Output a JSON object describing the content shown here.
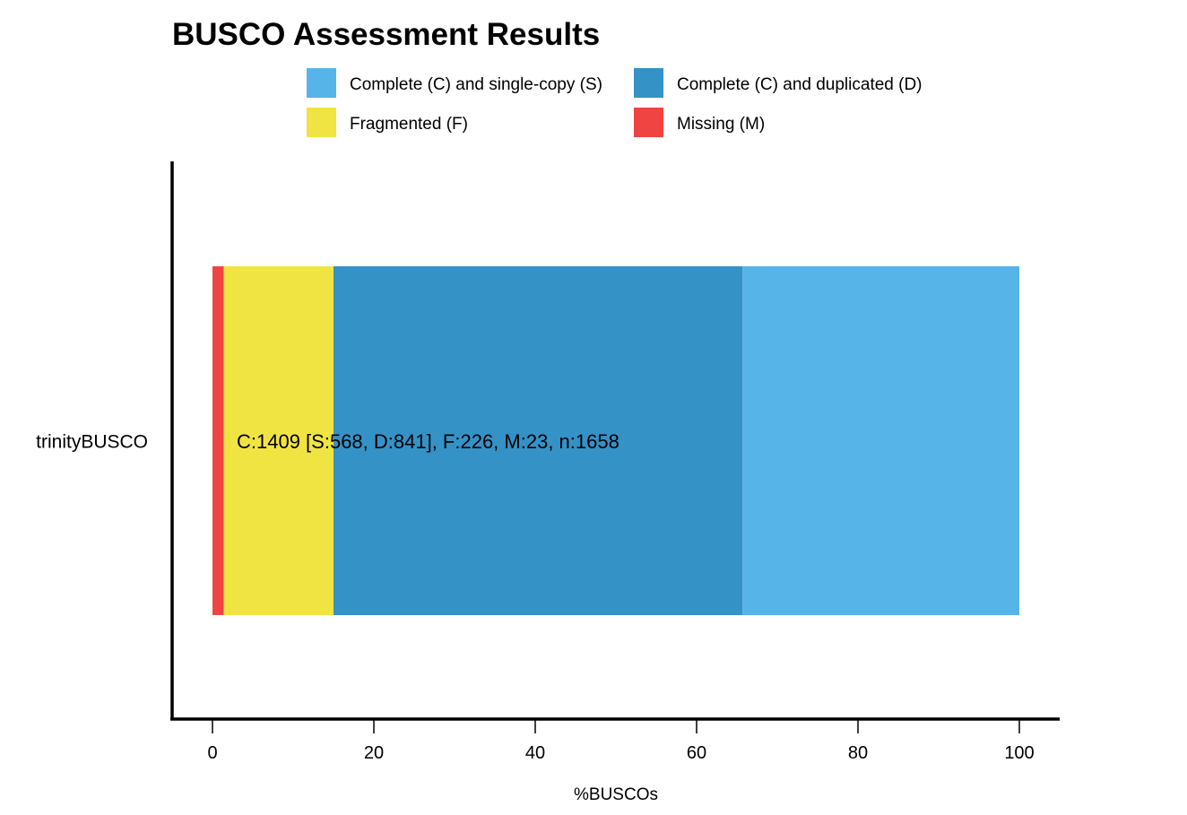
{
  "chart_data": {
    "type": "bar",
    "orientation": "horizontal",
    "stacked": true,
    "title": "BUSCO Assessment Results",
    "xlabel": "%BUSCOs",
    "ylabel": "",
    "xlim": [
      0,
      100
    ],
    "x_ticks": [
      "0",
      "20",
      "40",
      "60",
      "80",
      "100"
    ],
    "categories": [
      "trinityBUSCO"
    ],
    "legend_placement": "top",
    "grid": false,
    "legend": [
      {
        "key": "S",
        "label": "Complete (C) and single-copy (S)",
        "color": "#56B4E9"
      },
      {
        "key": "D",
        "label": "Complete (C) and duplicated (D)",
        "color": "#3492C7"
      },
      {
        "key": "F",
        "label": "Fragmented (F)",
        "color": "#F0E442"
      },
      {
        "key": "M",
        "label": "Missing (M)",
        "color": "#F04442"
      }
    ],
    "stack_order": [
      "M",
      "F",
      "D",
      "S"
    ],
    "series": [
      {
        "key": "M",
        "values": [
          1.4
        ]
      },
      {
        "key": "F",
        "values": [
          13.6
        ]
      },
      {
        "key": "D",
        "values": [
          50.7
        ]
      },
      {
        "key": "S",
        "values": [
          34.3
        ]
      }
    ],
    "annotation": "C:1409 [S:568, D:841], F:226, M:23, n:1658"
  }
}
